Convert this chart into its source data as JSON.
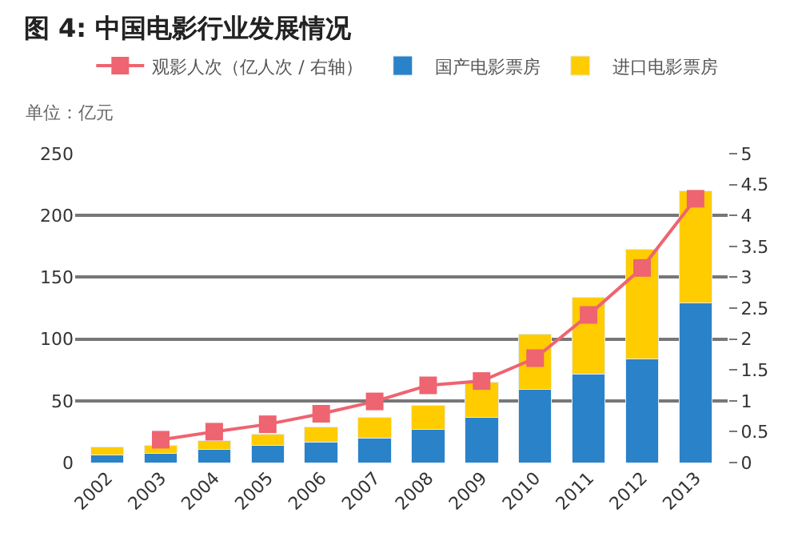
{
  "chart_data": {
    "type": "bar",
    "title": "图 4: 中国电影行业发展情况",
    "annotations": [
      "单位：亿元"
    ],
    "categories": [
      "2002",
      "2003",
      "2004",
      "2005",
      "2006",
      "2007",
      "2008",
      "2009",
      "2010",
      "2011",
      "2012",
      "2013"
    ],
    "stacked": true,
    "series": [
      {
        "name": "国产电影票房",
        "color": "#2a82c8",
        "values": [
          6.4,
          7.7,
          10.7,
          13.7,
          16.2,
          20,
          27,
          36.8,
          59,
          71.4,
          84,
          129
        ]
      },
      {
        "name": "进口电影票房",
        "color": "#ffcc00",
        "values": [
          6.0,
          6.0,
          7.3,
          9.3,
          12.4,
          16.8,
          19,
          28.6,
          45,
          62.6,
          88.6,
          91
        ]
      },
      {
        "name": "观影人次（亿人次 / 右轴）",
        "color": "#ee6470",
        "type": "line",
        "axis": "y2",
        "marker": "square",
        "values": [
          null,
          0.37,
          0.5,
          0.62,
          0.79,
          0.99,
          1.25,
          1.32,
          1.69,
          2.39,
          3.15,
          4.27
        ]
      }
    ],
    "ylim": [
      0,
      250
    ],
    "yticks": [
      0,
      50,
      100,
      150,
      200,
      250
    ],
    "y2lim": [
      0,
      5
    ],
    "y2ticks": [
      0,
      0.5,
      1,
      1.5,
      2,
      2.5,
      3,
      3.5,
      4,
      4.5,
      5
    ],
    "grid": "y",
    "legend": "top"
  }
}
